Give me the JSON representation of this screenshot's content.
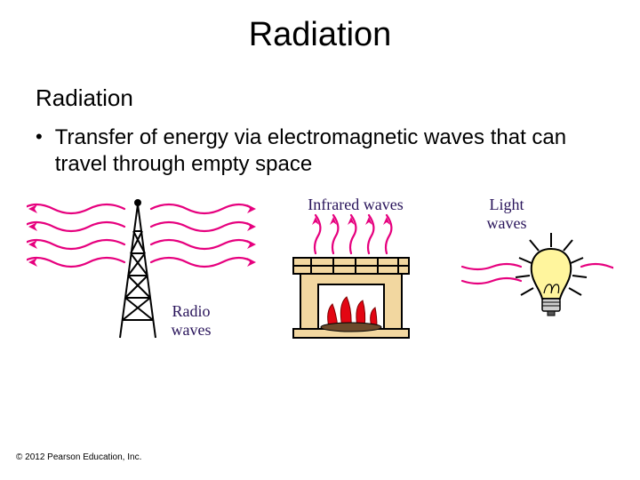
{
  "title": "Radiation",
  "subtitle": "Radiation",
  "bullet": "Transfer of energy via electromagnetic waves that can travel through empty space",
  "figure": {
    "labels": {
      "radio": "Radio\nwaves",
      "infrared": "Infrared waves",
      "light": "Light\nwaves"
    },
    "colors": {
      "wave": "#e6007e",
      "outline": "#000000",
      "fire": "#e30613",
      "fireplace_fill": "#f2d7a0",
      "bulb_fill": "#fff59d",
      "label_text": "#28135a",
      "body_text": "#000000",
      "background": "#ffffff"
    },
    "stroke_width": {
      "wave": 2.2,
      "outline": 2
    },
    "label_fontsize": 18
  },
  "copyright": "© 2012 Pearson Education, Inc."
}
